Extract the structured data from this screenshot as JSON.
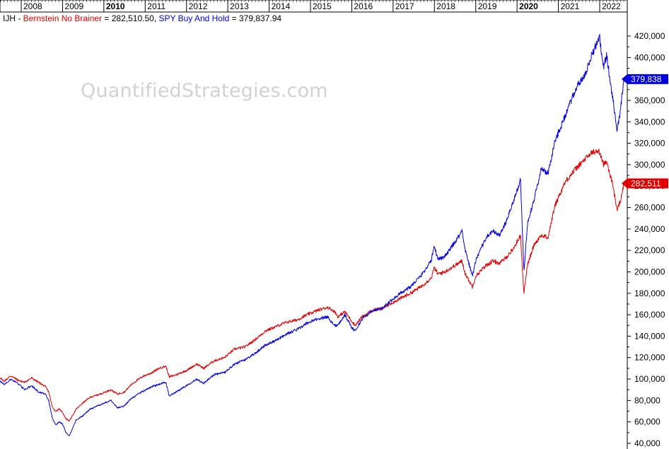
{
  "watermark": "QuantifiedStrategies.com",
  "legend": {
    "ticker": "IJH",
    "sep1": " - ",
    "series1_name": "Bernstein No Brainer",
    "series1_value": " = 282,510.50, ",
    "series2_name": "SPY Buy And Hold",
    "series2_value": " = 379,837.94"
  },
  "colors": {
    "series1": "#e00000",
    "series2": "#0000e0",
    "grid": "#d8d8d8",
    "axis": "#000000"
  },
  "chart_data": {
    "type": "line",
    "x_axis": {
      "type": "date",
      "range": [
        "2007-04",
        "2022-09"
      ],
      "tick_labels": [
        {
          "label": "2008",
          "date": "2008-01",
          "bold": false
        },
        {
          "label": "2009",
          "date": "2009-01",
          "bold": false
        },
        {
          "label": "2010",
          "date": "2010-01",
          "bold": true
        },
        {
          "label": "2011",
          "date": "2011-01",
          "bold": false
        },
        {
          "label": "2012",
          "date": "2012-01",
          "bold": false
        },
        {
          "label": "2013",
          "date": "2013-01",
          "bold": false
        },
        {
          "label": "2014",
          "date": "2014-01",
          "bold": false
        },
        {
          "label": "2015",
          "date": "2015-01",
          "bold": false
        },
        {
          "label": "2016",
          "date": "2016-01",
          "bold": false
        },
        {
          "label": "2017",
          "date": "2017-01",
          "bold": false
        },
        {
          "label": "2018",
          "date": "2018-01",
          "bold": false
        },
        {
          "label": "2019",
          "date": "2019-01",
          "bold": false
        },
        {
          "label": "2020",
          "date": "2020-01",
          "bold": true
        },
        {
          "label": "2021",
          "date": "2021-01",
          "bold": false
        },
        {
          "label": "2022",
          "date": "2022-01",
          "bold": false
        }
      ],
      "position": "top"
    },
    "y_axis": {
      "range": [
        40000,
        420000
      ],
      "ticks": [
        40000,
        60000,
        80000,
        100000,
        120000,
        140000,
        160000,
        180000,
        200000,
        220000,
        240000,
        260000,
        280000,
        300000,
        320000,
        340000,
        360000,
        380000,
        400000,
        420000
      ],
      "tick_labels": [
        "40,000",
        "60,000",
        "80,000",
        "100,000",
        "120,000",
        "140,000",
        "160,000",
        "180,000",
        "200,000",
        "220,000",
        "240,000",
        "260,000",
        "280,000",
        "300,000",
        "320,000",
        "340,000",
        "360,000",
        "380,000",
        "400,000",
        "420,000"
      ],
      "position": "right"
    },
    "grid": false,
    "series": [
      {
        "name": "Bernstein No Brainer",
        "color": "#e00000",
        "last_value_label": "282,511",
        "points": [
          [
            "2007-05",
            100000
          ],
          [
            "2007-06",
            104000
          ],
          [
            "2007-08",
            98000
          ],
          [
            "2007-10",
            103000
          ],
          [
            "2007-12",
            99000
          ],
          [
            "2008-02",
            97000
          ],
          [
            "2008-04",
            101000
          ],
          [
            "2008-06",
            97000
          ],
          [
            "2008-08",
            93000
          ],
          [
            "2008-09",
            88000
          ],
          [
            "2008-10",
            74000
          ],
          [
            "2008-11",
            70000
          ],
          [
            "2008-12",
            72000
          ],
          [
            "2009-01",
            69000
          ],
          [
            "2009-02",
            63000
          ],
          [
            "2009-03",
            61000
          ],
          [
            "2009-05",
            72000
          ],
          [
            "2009-07",
            78000
          ],
          [
            "2009-09",
            83000
          ],
          [
            "2009-12",
            86000
          ],
          [
            "2010-03",
            90000
          ],
          [
            "2010-05",
            86000
          ],
          [
            "2010-07",
            88000
          ],
          [
            "2010-09",
            95000
          ],
          [
            "2010-12",
            102000
          ],
          [
            "2011-03",
            106000
          ],
          [
            "2011-05",
            110000
          ],
          [
            "2011-07",
            112000
          ],
          [
            "2011-08",
            102000
          ],
          [
            "2011-10",
            104000
          ],
          [
            "2012-01",
            108000
          ],
          [
            "2012-04",
            114000
          ],
          [
            "2012-06",
            110000
          ],
          [
            "2012-09",
            117000
          ],
          [
            "2012-12",
            120000
          ],
          [
            "2013-03",
            128000
          ],
          [
            "2013-06",
            130000
          ],
          [
            "2013-09",
            137000
          ],
          [
            "2013-12",
            145000
          ],
          [
            "2014-03",
            149000
          ],
          [
            "2014-06",
            153000
          ],
          [
            "2014-09",
            155000
          ],
          [
            "2014-12",
            160000
          ],
          [
            "2015-03",
            164000
          ],
          [
            "2015-06",
            167000
          ],
          [
            "2015-08",
            163000
          ],
          [
            "2015-09",
            158000
          ],
          [
            "2015-11",
            163000
          ],
          [
            "2016-01",
            154000
          ],
          [
            "2016-02",
            150000
          ],
          [
            "2016-04",
            158000
          ],
          [
            "2016-07",
            164000
          ],
          [
            "2016-10",
            166000
          ],
          [
            "2016-12",
            170000
          ],
          [
            "2017-03",
            175000
          ],
          [
            "2017-06",
            180000
          ],
          [
            "2017-09",
            186000
          ],
          [
            "2017-12",
            194000
          ],
          [
            "2018-01",
            204000
          ],
          [
            "2018-02",
            198000
          ],
          [
            "2018-04",
            200000
          ],
          [
            "2018-07",
            206000
          ],
          [
            "2018-09",
            210000
          ],
          [
            "2018-10",
            198000
          ],
          [
            "2018-12",
            186000
          ],
          [
            "2019-01",
            196000
          ],
          [
            "2019-04",
            206000
          ],
          [
            "2019-06",
            210000
          ],
          [
            "2019-08",
            208000
          ],
          [
            "2019-10",
            214000
          ],
          [
            "2019-12",
            222000
          ],
          [
            "2020-02",
            234000
          ],
          [
            "2020-03",
            180000
          ],
          [
            "2020-04",
            206000
          ],
          [
            "2020-06",
            226000
          ],
          [
            "2020-08",
            234000
          ],
          [
            "2020-10",
            232000
          ],
          [
            "2020-12",
            262000
          ],
          [
            "2021-03",
            284000
          ],
          [
            "2021-06",
            296000
          ],
          [
            "2021-09",
            306000
          ],
          [
            "2021-11",
            312000
          ],
          [
            "2022-01",
            312000
          ],
          [
            "2022-02",
            300000
          ],
          [
            "2022-03",
            304000
          ],
          [
            "2022-05",
            278000
          ],
          [
            "2022-06",
            258000
          ],
          [
            "2022-07",
            266000
          ],
          [
            "2022-08",
            282511
          ]
        ]
      },
      {
        "name": "SPY Buy And Hold",
        "color": "#0000e0",
        "last_value_label": "379,838",
        "points": [
          [
            "2007-05",
            96000
          ],
          [
            "2007-06",
            101000
          ],
          [
            "2007-08",
            95000
          ],
          [
            "2007-10",
            100000
          ],
          [
            "2007-12",
            96000
          ],
          [
            "2008-02",
            90000
          ],
          [
            "2008-04",
            94000
          ],
          [
            "2008-06",
            88000
          ],
          [
            "2008-08",
            86000
          ],
          [
            "2008-09",
            80000
          ],
          [
            "2008-10",
            64000
          ],
          [
            "2008-11",
            57000
          ],
          [
            "2008-12",
            60000
          ],
          [
            "2009-01",
            58000
          ],
          [
            "2009-02",
            50000
          ],
          [
            "2009-03",
            47000
          ],
          [
            "2009-05",
            62000
          ],
          [
            "2009-07",
            66000
          ],
          [
            "2009-09",
            72000
          ],
          [
            "2009-12",
            76000
          ],
          [
            "2010-03",
            80000
          ],
          [
            "2010-05",
            73000
          ],
          [
            "2010-07",
            75000
          ],
          [
            "2010-09",
            82000
          ],
          [
            "2010-12",
            88000
          ],
          [
            "2011-03",
            93000
          ],
          [
            "2011-05",
            95000
          ],
          [
            "2011-07",
            97000
          ],
          [
            "2011-08",
            84000
          ],
          [
            "2011-10",
            88000
          ],
          [
            "2012-01",
            94000
          ],
          [
            "2012-04",
            100000
          ],
          [
            "2012-06",
            96000
          ],
          [
            "2012-09",
            104000
          ],
          [
            "2012-12",
            106000
          ],
          [
            "2013-03",
            114000
          ],
          [
            "2013-06",
            118000
          ],
          [
            "2013-09",
            124000
          ],
          [
            "2013-12",
            132000
          ],
          [
            "2014-03",
            136000
          ],
          [
            "2014-06",
            142000
          ],
          [
            "2014-09",
            146000
          ],
          [
            "2014-12",
            152000
          ],
          [
            "2015-03",
            156000
          ],
          [
            "2015-06",
            158000
          ],
          [
            "2015-08",
            150000
          ],
          [
            "2015-09",
            150000
          ],
          [
            "2015-11",
            160000
          ],
          [
            "2016-01",
            148000
          ],
          [
            "2016-02",
            145000
          ],
          [
            "2016-04",
            156000
          ],
          [
            "2016-07",
            164000
          ],
          [
            "2016-10",
            166000
          ],
          [
            "2016-12",
            172000
          ],
          [
            "2017-03",
            180000
          ],
          [
            "2017-06",
            186000
          ],
          [
            "2017-09",
            196000
          ],
          [
            "2017-12",
            210000
          ],
          [
            "2018-01",
            224000
          ],
          [
            "2018-02",
            212000
          ],
          [
            "2018-04",
            214000
          ],
          [
            "2018-07",
            228000
          ],
          [
            "2018-09",
            238000
          ],
          [
            "2018-10",
            220000
          ],
          [
            "2018-12",
            196000
          ],
          [
            "2019-01",
            210000
          ],
          [
            "2019-04",
            232000
          ],
          [
            "2019-06",
            238000
          ],
          [
            "2019-08",
            234000
          ],
          [
            "2019-10",
            248000
          ],
          [
            "2019-12",
            266000
          ],
          [
            "2020-02",
            286000
          ],
          [
            "2020-03",
            200000
          ],
          [
            "2020-04",
            244000
          ],
          [
            "2020-06",
            268000
          ],
          [
            "2020-08",
            296000
          ],
          [
            "2020-10",
            292000
          ],
          [
            "2020-12",
            322000
          ],
          [
            "2021-03",
            346000
          ],
          [
            "2021-06",
            370000
          ],
          [
            "2021-09",
            386000
          ],
          [
            "2021-11",
            405000
          ],
          [
            "2022-01",
            418000
          ],
          [
            "2022-02",
            390000
          ],
          [
            "2022-03",
            402000
          ],
          [
            "2022-05",
            358000
          ],
          [
            "2022-06",
            330000
          ],
          [
            "2022-07",
            350000
          ],
          [
            "2022-08",
            379838
          ]
        ]
      }
    ]
  }
}
